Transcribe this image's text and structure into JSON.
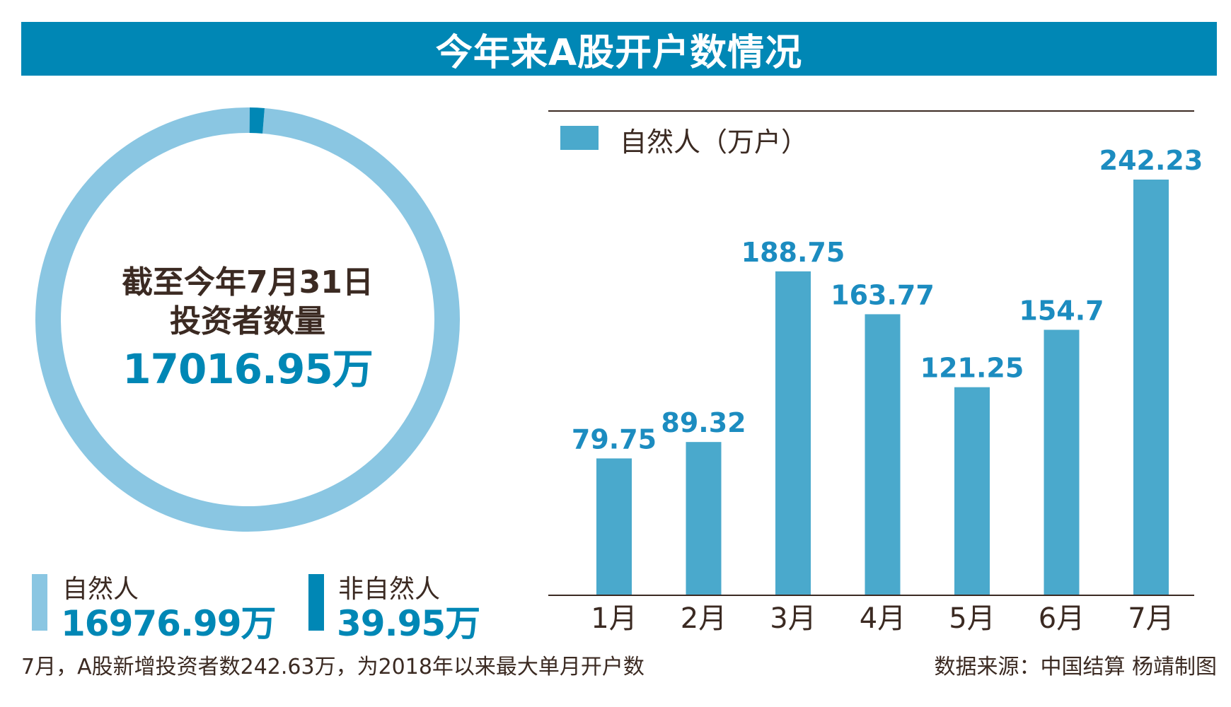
{
  "title": "今年来A股开户数情况",
  "colors": {
    "banner": "#0087b5",
    "natural": "#8ac6e2",
    "non_natural": "#0087b5",
    "bar": "#4aa9cc",
    "bar_label": "#1c8cc0",
    "text": "#3b2a22",
    "axis": "#3b2a22"
  },
  "donut": {
    "center_line1": "截至今年7月31日",
    "center_line2": "投资者数量",
    "center_total": "17016.95万"
  },
  "legend": {
    "natural_label": "自然人",
    "natural_value": "16976.99万",
    "non_natural_label": "非自然人",
    "non_natural_value": "39.95万"
  },
  "bar_legend": "自然人（万户）",
  "chart_data": [
    {
      "type": "pie",
      "title": "截至今年7月31日投资者数量",
      "total": 17016.95,
      "unit": "万",
      "slices": [
        {
          "name": "自然人",
          "value": 16976.99
        },
        {
          "name": "非自然人",
          "value": 39.95
        }
      ]
    },
    {
      "type": "bar",
      "categories": [
        "1月",
        "2月",
        "3月",
        "4月",
        "5月",
        "6月",
        "7月"
      ],
      "series": [
        {
          "name": "自然人（万户）",
          "values": [
            79.75,
            89.32,
            188.75,
            163.77,
            121.25,
            154.7,
            242.23
          ]
        }
      ],
      "value_labels": [
        "79.75",
        "89.32",
        "188.75",
        "163.77",
        "121.25",
        "154.7",
        "242.23"
      ],
      "ylim": [
        0,
        242.23
      ],
      "xlabel": "",
      "ylabel": ""
    }
  ],
  "footnote_left": "7月，A股新增投资者数242.63万，为2018年以来最大单月开户数",
  "footnote_right": "数据来源：中国结算 杨靖制图"
}
